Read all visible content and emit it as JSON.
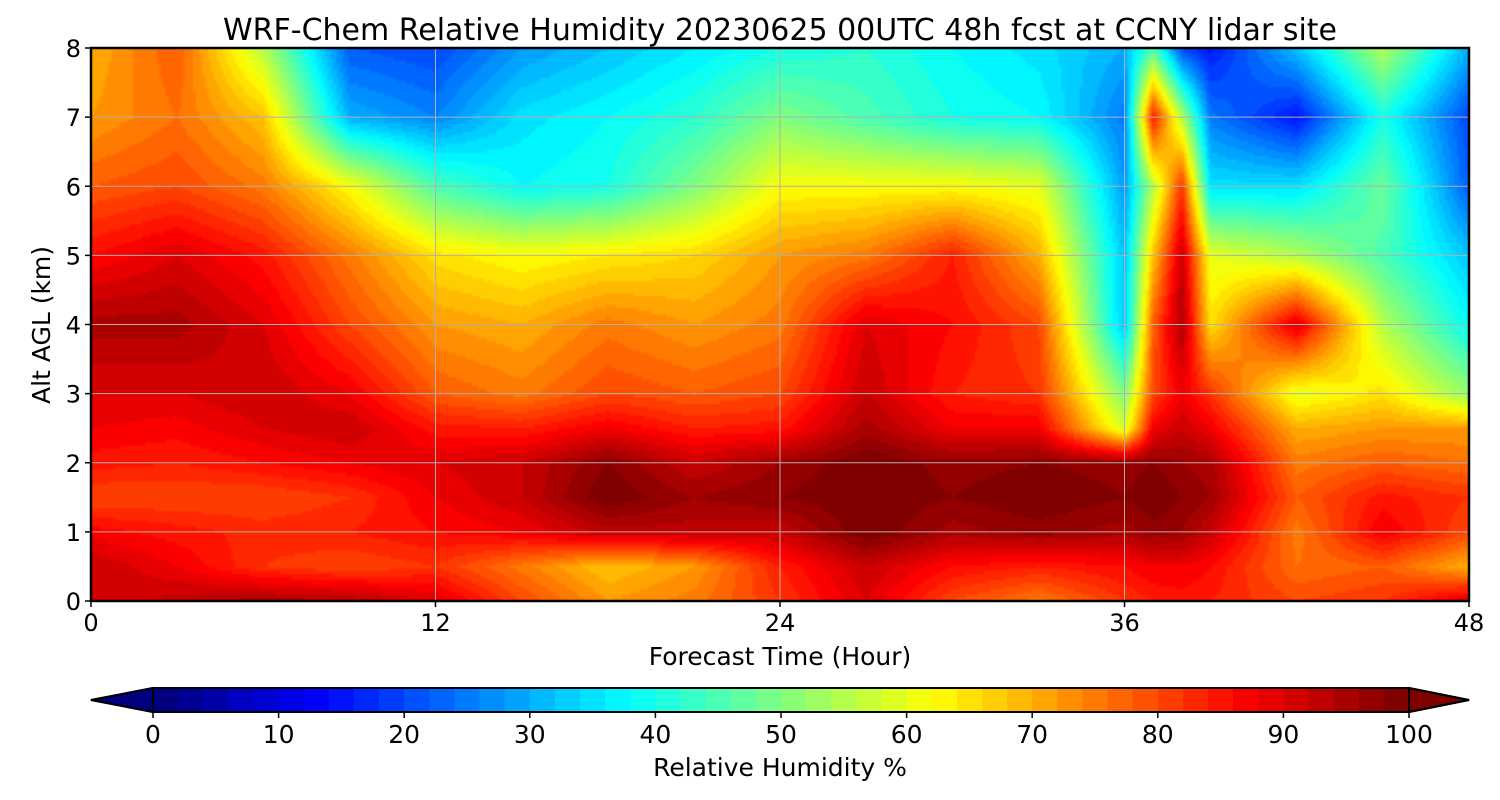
{
  "chart_data": {
    "type": "heatmap",
    "title": "WRF-Chem Relative Humidity 20230625 00UTC 48h fcst at CCNY lidar site",
    "xlabel": "Forecast Time (Hour)",
    "ylabel": "Alt AGL (km)",
    "xlim": [
      0,
      48
    ],
    "ylim": [
      0,
      8
    ],
    "x_ticks": [
      "0",
      "12",
      "24",
      "36",
      "48"
    ],
    "y_ticks": [
      "0",
      "1",
      "2",
      "3",
      "4",
      "5",
      "6",
      "7",
      "8"
    ],
    "grid": true,
    "x": [
      0,
      3,
      6,
      9,
      12,
      15,
      18,
      21,
      24,
      27,
      30,
      33,
      36,
      37,
      38,
      39,
      42,
      45,
      48
    ],
    "y": [
      0,
      0.5,
      1,
      1.5,
      2,
      2.5,
      3,
      4,
      5,
      6,
      7,
      8
    ],
    "z": [
      [
        90,
        93,
        95,
        94,
        90,
        80,
        72,
        75,
        82,
        90,
        80,
        75,
        82,
        84,
        85,
        84,
        80,
        82,
        90
      ],
      [
        92,
        88,
        82,
        80,
        82,
        75,
        68,
        72,
        84,
        92,
        86,
        84,
        86,
        88,
        88,
        86,
        76,
        78,
        70
      ],
      [
        87,
        85,
        83,
        84,
        86,
        88,
        93,
        93,
        92,
        100,
        95,
        97,
        95,
        97,
        96,
        92,
        75,
        88,
        80
      ],
      [
        80,
        80,
        80,
        82,
        88,
        92,
        100,
        96,
        98,
        100,
        98,
        100,
        98,
        100,
        98,
        96,
        78,
        85,
        82
      ],
      [
        85,
        84,
        86,
        88,
        90,
        92,
        98,
        92,
        96,
        100,
        97,
        98,
        97,
        98,
        96,
        95,
        75,
        78,
        76
      ],
      [
        88,
        87,
        90,
        92,
        85,
        84,
        88,
        84,
        85,
        95,
        88,
        88,
        58,
        88,
        92,
        88,
        70,
        72,
        72
      ],
      [
        90,
        90,
        92,
        88,
        78,
        75,
        80,
        78,
        80,
        92,
        84,
        82,
        50,
        80,
        88,
        82,
        60,
        65,
        52
      ],
      [
        95,
        95,
        90,
        80,
        72,
        70,
        75,
        72,
        75,
        90,
        86,
        80,
        32,
        78,
        95,
        65,
        90,
        55,
        38
      ],
      [
        86,
        90,
        85,
        75,
        65,
        62,
        64,
        66,
        72,
        75,
        84,
        70,
        32,
        68,
        92,
        60,
        55,
        45,
        32
      ],
      [
        78,
        80,
        75,
        62,
        45,
        38,
        40,
        50,
        62,
        62,
        62,
        60,
        28,
        55,
        82,
        35,
        35,
        48,
        22
      ],
      [
        72,
        76,
        68,
        30,
        26,
        35,
        38,
        42,
        50,
        45,
        40,
        38,
        25,
        85,
        55,
        25,
        15,
        40,
        20
      ],
      [
        70,
        78,
        55,
        22,
        20,
        28,
        32,
        36,
        40,
        42,
        38,
        35,
        30,
        45,
        20,
        15,
        32,
        55,
        30
      ]
    ],
    "colorbar": {
      "label": "Relative Humidity %",
      "range": [
        0,
        100
      ],
      "ticks": [
        "0",
        "10",
        "20",
        "30",
        "40",
        "50",
        "60",
        "70",
        "80",
        "90",
        "100"
      ],
      "extend": "both",
      "colormap": "jet"
    }
  }
}
